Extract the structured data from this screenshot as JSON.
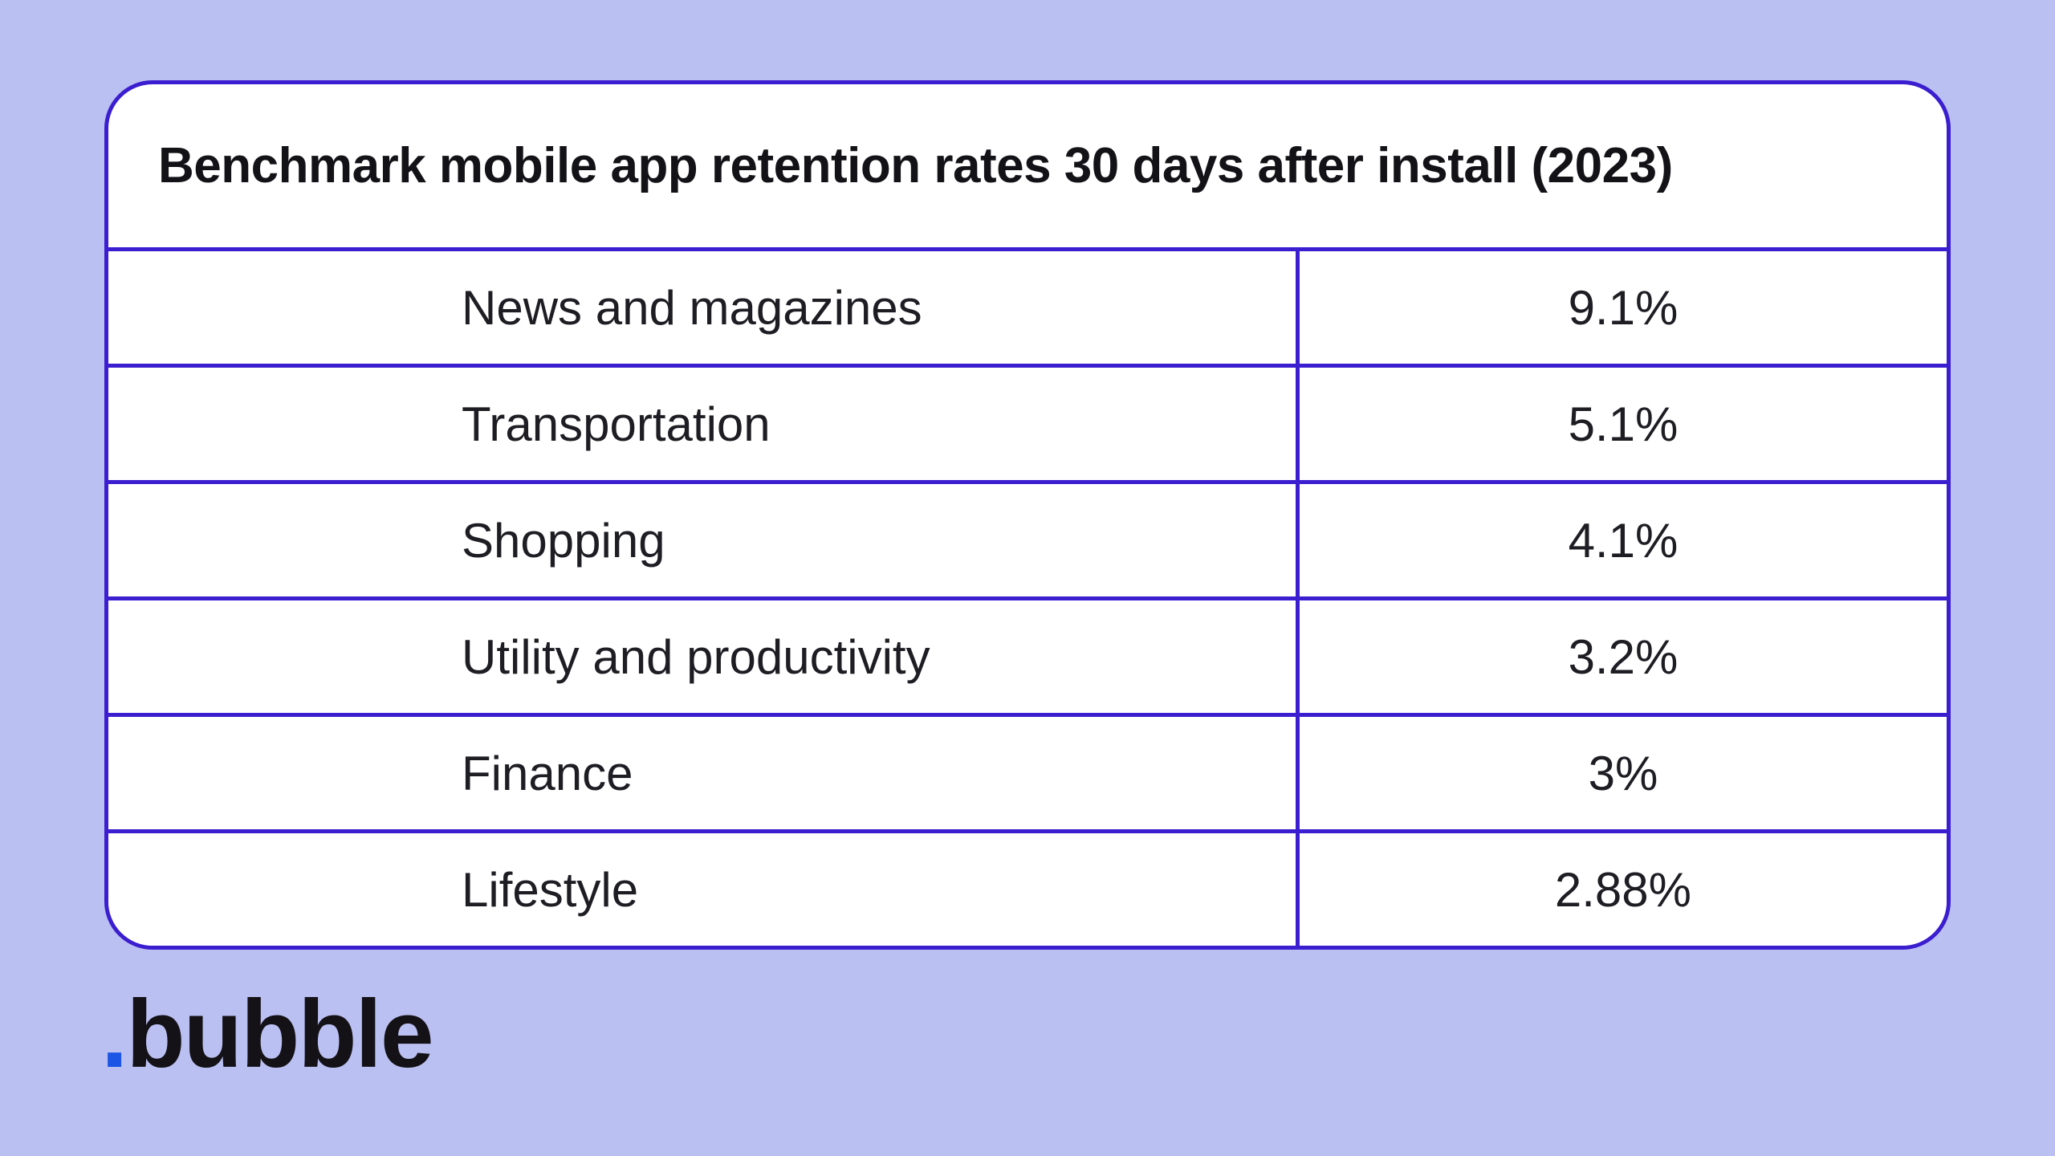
{
  "page": {
    "background_color": "#bbc0f2"
  },
  "card": {
    "background_color": "#ffffff",
    "border_color": "#3a1ecf",
    "title": "Benchmark mobile app retention rates 30 days after install (2023)"
  },
  "chart_data": {
    "type": "table",
    "title": "Benchmark mobile app retention rates 30 days after install (2023)",
    "categories": [
      "News and magazines",
      "Transportation",
      "Shopping",
      "Utility and productivity",
      "Finance",
      "Lifestyle"
    ],
    "values": [
      "9.1%",
      "5.1%",
      "4.1%",
      "3.2%",
      "3%",
      "2.88%"
    ],
    "rows": [
      {
        "label": "News and magazines",
        "value": "9.1%"
      },
      {
        "label": "Transportation",
        "value": "5.1%"
      },
      {
        "label": "Shopping",
        "value": "4.1%"
      },
      {
        "label": "Utility and productivity",
        "value": "3.2%"
      },
      {
        "label": "Finance",
        "value": "3%"
      },
      {
        "label": "Lifestyle",
        "value": "2.88%"
      }
    ],
    "layout": {
      "grid": "ruled table, indigo dividers",
      "value_column_alignment": "center",
      "label_column_alignment": "left"
    }
  },
  "footer": {
    "logo_dot": ".",
    "logo_text": "bubble",
    "logo_dot_color": "#1b55e5"
  }
}
